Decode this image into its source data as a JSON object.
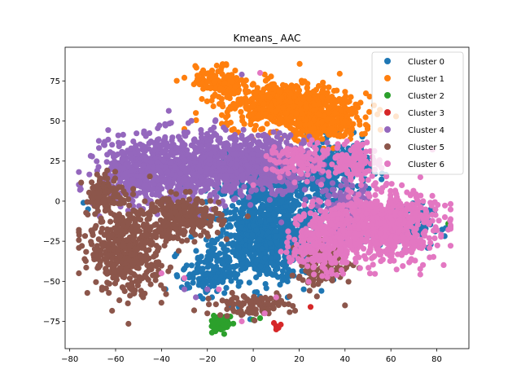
{
  "chart_data": {
    "type": "scatter",
    "title": "Kmeans_ AAC",
    "xlabel": "",
    "ylabel": "",
    "xlim": [
      -82,
      94
    ],
    "ylim": [
      -92,
      96
    ],
    "xticks": [
      -80,
      -60,
      -40,
      -20,
      0,
      20,
      40,
      60,
      80
    ],
    "yticks": [
      -75,
      -50,
      -25,
      0,
      25,
      50,
      75
    ],
    "grid": false,
    "legend_position": "top-right",
    "series": [
      {
        "name": "Cluster 0",
        "color": "#1f77b4",
        "regions": [
          {
            "cx": 5,
            "cy": -25,
            "rx": 20,
            "ry": 22,
            "n": 700
          },
          {
            "cx": 10,
            "cy": 5,
            "rx": 25,
            "ry": 20,
            "n": 400
          },
          {
            "cx": 35,
            "cy": 20,
            "rx": 14,
            "ry": 16,
            "n": 300
          },
          {
            "cx": 65,
            "cy": -15,
            "rx": 12,
            "ry": 12,
            "n": 150
          },
          {
            "cx": -20,
            "cy": -45,
            "rx": 10,
            "ry": 12,
            "n": 120
          }
        ],
        "points": [
          [
            -74,
            -1
          ],
          [
            -72,
            -5
          ],
          [
            -18,
            -60
          ],
          [
            -10,
            -65
          ],
          [
            15,
            -60
          ],
          [
            22,
            -55
          ]
        ]
      },
      {
        "name": "Cluster 1",
        "color": "#ff7f0e",
        "regions": [
          {
            "cx": 15,
            "cy": 60,
            "rx": 26,
            "ry": 13,
            "n": 650
          },
          {
            "cx": -15,
            "cy": 75,
            "rx": 9,
            "ry": 8,
            "n": 120
          },
          {
            "cx": 30,
            "cy": 48,
            "rx": 14,
            "ry": 9,
            "n": 200
          }
        ],
        "points": [
          [
            -30,
            77
          ],
          [
            -25,
            55
          ],
          [
            -30,
            45
          ],
          [
            5,
            79
          ],
          [
            40,
            50
          ]
        ]
      },
      {
        "name": "Cluster 2",
        "color": "#2ca02c",
        "regions": [
          {
            "cx": -14,
            "cy": -76,
            "rx": 4,
            "ry": 4,
            "n": 60
          }
        ],
        "points": [
          [
            -18,
            -82
          ],
          [
            -10,
            -72
          ],
          [
            -5,
            -70
          ],
          [
            0,
            -74
          ],
          [
            3,
            -73
          ],
          [
            85,
            -14
          ],
          [
            -14,
            -80
          ]
        ]
      },
      {
        "name": "Cluster 3",
        "color": "#d62728",
        "regions": [],
        "points": [
          [
            9,
            -76
          ],
          [
            10,
            -78
          ],
          [
            11,
            -79
          ],
          [
            12,
            -77
          ],
          [
            10,
            -80
          ],
          [
            25,
            -66
          ]
        ]
      },
      {
        "name": "Cluster 4",
        "color": "#9467bd",
        "regions": [
          {
            "cx": -30,
            "cy": 20,
            "rx": 30,
            "ry": 20,
            "n": 900
          },
          {
            "cx": 5,
            "cy": 25,
            "rx": 20,
            "ry": 15,
            "n": 400
          },
          {
            "cx": -55,
            "cy": 15,
            "rx": 12,
            "ry": 14,
            "n": 200
          },
          {
            "cx": 40,
            "cy": -5,
            "rx": 10,
            "ry": 15,
            "n": 120
          }
        ],
        "points": [
          [
            -25,
            -60
          ],
          [
            -30,
            -55
          ],
          [
            -20,
            -55
          ],
          [
            -5,
            79
          ]
        ]
      },
      {
        "name": "Cluster 5",
        "color": "#8c564b",
        "regions": [
          {
            "cx": -55,
            "cy": -30,
            "rx": 15,
            "ry": 25,
            "n": 500
          },
          {
            "cx": -30,
            "cy": -10,
            "rx": 14,
            "ry": 12,
            "n": 250
          },
          {
            "cx": -65,
            "cy": 5,
            "rx": 6,
            "ry": 10,
            "n": 100
          },
          {
            "cx": 30,
            "cy": -40,
            "rx": 12,
            "ry": 12,
            "n": 120
          },
          {
            "cx": 0,
            "cy": -65,
            "rx": 15,
            "ry": 6,
            "n": 100
          }
        ],
        "points": [
          [
            -48,
            -60
          ],
          [
            -38,
            -58
          ],
          [
            -20,
            -70
          ],
          [
            40,
            -65
          ]
        ]
      },
      {
        "name": "Cluster 6",
        "color": "#e377c2",
        "regions": [
          {
            "cx": 55,
            "cy": -15,
            "rx": 22,
            "ry": 20,
            "n": 750
          },
          {
            "cx": 30,
            "cy": -25,
            "rx": 12,
            "ry": 18,
            "n": 250
          },
          {
            "cx": 45,
            "cy": 25,
            "rx": 10,
            "ry": 10,
            "n": 120
          },
          {
            "cx": 20,
            "cy": 25,
            "rx": 12,
            "ry": 10,
            "n": 100
          }
        ],
        "points": [
          [
            -40,
            -45
          ],
          [
            -30,
            -48
          ],
          [
            -15,
            -55
          ],
          [
            -5,
            -75
          ],
          [
            5,
            -70
          ],
          [
            10,
            -60
          ],
          [
            0,
            10
          ],
          [
            3,
            80
          ]
        ]
      }
    ]
  }
}
